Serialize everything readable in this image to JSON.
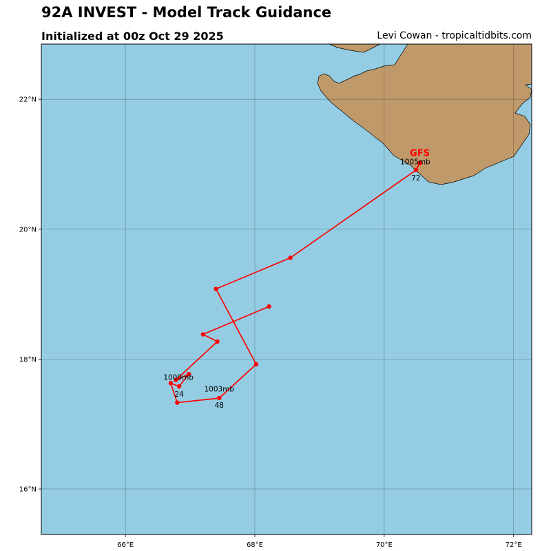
{
  "header": {
    "title": "92A INVEST - Model Track Guidance",
    "subtitle": "Initialized at 00z Oct 29 2025",
    "credit": "Levi Cowan - tropicaltidbits.com"
  },
  "map": {
    "lon_range": [
      64.7,
      72.28
    ],
    "lat_range": [
      15.3,
      22.85
    ],
    "ocean_color": "#94cde3",
    "land_color": "#c0996b",
    "track_color": "#ff0000",
    "lon_ticks": [
      {
        "value": 66,
        "label": "66°E"
      },
      {
        "value": 68,
        "label": "68°E"
      },
      {
        "value": 70,
        "label": "70°E"
      },
      {
        "value": 72,
        "label": "72°E"
      }
    ],
    "lat_ticks": [
      {
        "value": 16,
        "label": "16°N"
      },
      {
        "value": 18,
        "label": "18°N"
      },
      {
        "value": 20,
        "label": "20°N"
      },
      {
        "value": 22,
        "label": "22°N"
      }
    ]
  },
  "tracks": [
    {
      "model": "GFS",
      "color": "#ff0000",
      "points": [
        {
          "lon": 68.22,
          "lat": 18.81
        },
        {
          "lon": 67.2,
          "lat": 18.38
        },
        {
          "lon": 67.42,
          "lat": 18.27
        },
        {
          "lon": 66.78,
          "lat": 17.68
        },
        {
          "lon": 66.98,
          "lat": 17.77
        },
        {
          "lon": 66.83,
          "lat": 17.58
        },
        {
          "lon": 66.7,
          "lat": 17.63
        },
        {
          "lon": 66.8,
          "lat": 17.33
        },
        {
          "lon": 67.45,
          "lat": 17.4
        },
        {
          "lon": 68.02,
          "lat": 17.92
        },
        {
          "lon": 67.4,
          "lat": 19.08
        },
        {
          "lon": 68.55,
          "lat": 19.56
        },
        {
          "lon": 70.49,
          "lat": 20.91
        },
        {
          "lon": 70.55,
          "lat": 21.02
        }
      ],
      "labels": [
        {
          "lon": 66.82,
          "lat": 17.68,
          "text": "1000mb"
        },
        {
          "lon": 66.83,
          "lat": 17.42,
          "text": "24"
        },
        {
          "lon": 67.45,
          "lat": 17.5,
          "text": "1003mb"
        },
        {
          "lon": 67.45,
          "lat": 17.25,
          "text": "48"
        },
        {
          "lon": 70.48,
          "lat": 21.0,
          "text": "1005mb"
        },
        {
          "lon": 70.49,
          "lat": 20.75,
          "text": "72"
        }
      ]
    }
  ]
}
